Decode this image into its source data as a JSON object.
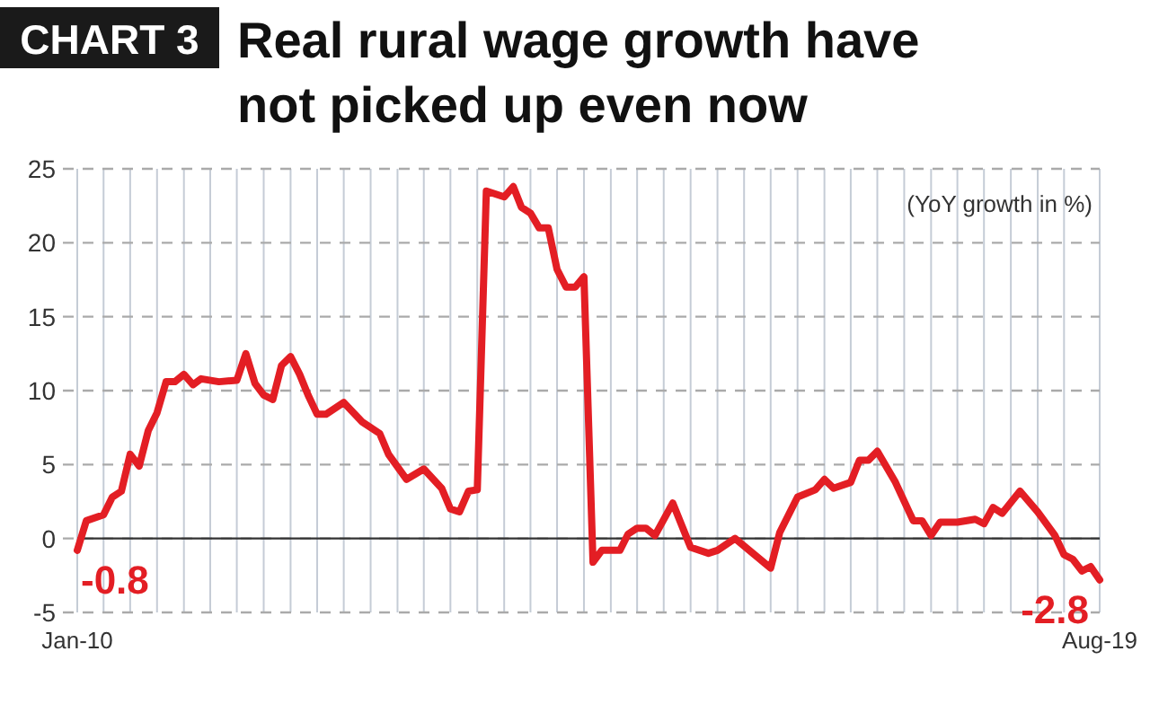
{
  "chart_data": {
    "type": "line",
    "title": "Real rural wage growth have not picked up even now",
    "ylabel": "(YoY growth in %)",
    "annotations": [
      "CHART 3",
      {
        "text": "-0.8",
        "x": "2010-01",
        "y": -0.8
      },
      {
        "text": "-2.8",
        "x": "2019-08",
        "y": -2.8
      }
    ],
    "x": [
      "2010-01",
      "2010-02",
      "2010-04",
      "2010-05",
      "2010-06",
      "2010-07",
      "2010-08",
      "2010-09",
      "2010-10",
      "2010-11",
      "2010-12",
      "2011-01",
      "2011-02",
      "2011-03",
      "2011-05",
      "2011-07",
      "2011-08",
      "2011-09",
      "2011-10",
      "2011-11",
      "2011-12",
      "2012-01",
      "2012-02",
      "2012-03",
      "2012-04",
      "2012-05",
      "2012-07",
      "2012-09",
      "2012-11",
      "2012-12",
      "2013-02",
      "2013-04",
      "2013-06",
      "2013-07",
      "2013-08",
      "2013-09",
      "2013-10",
      "2013-11",
      "2014-01",
      "2014-02",
      "2014-03",
      "2014-04",
      "2014-05",
      "2014-06",
      "2014-07",
      "2014-08",
      "2014-09",
      "2014-10",
      "2014-11",
      "2014-12",
      "2015-02",
      "2015-03",
      "2015-04",
      "2015-05",
      "2015-06",
      "2015-08",
      "2015-10",
      "2015-12",
      "2016-01",
      "2016-03",
      "2016-05",
      "2016-07",
      "2016-08",
      "2016-10",
      "2016-12",
      "2017-01",
      "2017-02",
      "2017-04",
      "2017-05",
      "2017-06",
      "2017-07",
      "2017-09",
      "2017-11",
      "2017-12",
      "2018-01",
      "2018-02",
      "2018-04",
      "2018-06",
      "2018-07",
      "2018-08",
      "2018-09",
      "2018-11",
      "2019-01",
      "2019-03",
      "2019-04",
      "2019-05",
      "2019-06",
      "2019-07",
      "2019-08"
    ],
    "series": [
      {
        "color": "#e31e24",
        "values": [
          -0.8,
          1.2,
          1.6,
          2.8,
          3.2,
          5.7,
          4.9,
          7.3,
          8.5,
          10.6,
          10.6,
          11.1,
          10.4,
          10.8,
          10.6,
          10.7,
          12.5,
          10.5,
          9.7,
          9.4,
          11.7,
          12.3,
          11.1,
          9.7,
          8.4,
          8.4,
          9.2,
          7.9,
          7.1,
          5.7,
          4.0,
          4.7,
          3.4,
          2.0,
          1.8,
          3.2,
          3.3,
          23.5,
          23.1,
          23.8,
          22.4,
          22.0,
          21.0,
          21.0,
          18.2,
          17.0,
          17.0,
          17.7,
          -1.6,
          -0.8,
          -0.8,
          0.3,
          0.7,
          0.7,
          0.2,
          2.4,
          -0.6,
          -1.0,
          -0.8,
          0.0,
          -1.0,
          -2.0,
          0.4,
          2.8,
          3.3,
          4.0,
          3.4,
          3.8,
          5.3,
          5.3,
          5.9,
          3.8,
          1.2,
          1.2,
          0.2,
          1.1,
          1.1,
          1.3,
          1.0,
          2.1,
          1.7,
          3.2,
          1.8,
          0.2,
          -1.1,
          -1.4,
          -2.2,
          -1.9,
          -2.8
        ]
      }
    ],
    "xlim": [
      "2010-01",
      "2019-08"
    ],
    "xticks": [
      {
        "value": "2010-01",
        "label": "Jan-10"
      },
      {
        "value": "2010-04",
        "label": null
      },
      {
        "value": "2010-07",
        "label": null
      },
      {
        "value": "2010-10",
        "label": null
      },
      {
        "value": "2011-01",
        "label": null
      },
      {
        "value": "2011-04",
        "label": null
      },
      {
        "value": "2011-07",
        "label": null
      },
      {
        "value": "2011-10",
        "label": null
      },
      {
        "value": "2012-01",
        "label": null
      },
      {
        "value": "2012-04",
        "label": null
      },
      {
        "value": "2012-07",
        "label": null
      },
      {
        "value": "2012-10",
        "label": null
      },
      {
        "value": "2013-01",
        "label": null
      },
      {
        "value": "2013-04",
        "label": null
      },
      {
        "value": "2013-07",
        "label": null
      },
      {
        "value": "2013-10",
        "label": null
      },
      {
        "value": "2014-01",
        "label": null
      },
      {
        "value": "2014-04",
        "label": null
      },
      {
        "value": "2014-07",
        "label": null
      },
      {
        "value": "2014-10",
        "label": null
      },
      {
        "value": "2015-01",
        "label": null
      },
      {
        "value": "2015-04",
        "label": null
      },
      {
        "value": "2015-07",
        "label": null
      },
      {
        "value": "2015-10",
        "label": null
      },
      {
        "value": "2016-01",
        "label": null
      },
      {
        "value": "2016-04",
        "label": null
      },
      {
        "value": "2016-07",
        "label": null
      },
      {
        "value": "2016-10",
        "label": null
      },
      {
        "value": "2017-01",
        "label": null
      },
      {
        "value": "2017-04",
        "label": null
      },
      {
        "value": "2017-07",
        "label": null
      },
      {
        "value": "2017-10",
        "label": null
      },
      {
        "value": "2018-01",
        "label": null
      },
      {
        "value": "2018-04",
        "label": null
      },
      {
        "value": "2018-07",
        "label": null
      },
      {
        "value": "2018-10",
        "label": null
      },
      {
        "value": "2019-01",
        "label": null
      },
      {
        "value": "2019-04",
        "label": null
      },
      {
        "value": "2019-08",
        "label": "Aug-19"
      }
    ],
    "ylim": [
      -5,
      25
    ],
    "yticks": [
      -5,
      0,
      5,
      10,
      15,
      20,
      25
    ],
    "grid": true,
    "ref_lines": [
      {
        "axis": "y",
        "value": 0,
        "color": "#333333"
      }
    ],
    "marker": "none",
    "line_style": "solid"
  }
}
